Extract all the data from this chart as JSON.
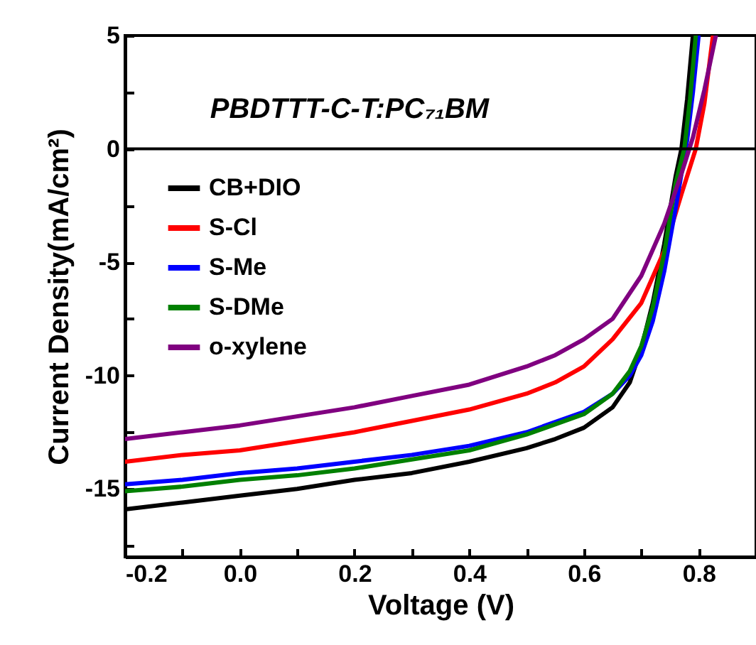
{
  "chart_data": {
    "type": "line",
    "title": "PBDTTT-C-T:PC₇₁BM",
    "xlabel": "Voltage (V)",
    "ylabel": "Current Density(mA/cm²)",
    "xlim": [
      -0.2,
      0.9
    ],
    "ylim": [
      -18,
      5
    ],
    "xticks": [
      -0.2,
      {
        "value": -0.1,
        "label": null
      },
      {
        "value": 0,
        "label": "0.0"
      },
      {
        "value": 0.1,
        "label": null
      },
      0.2,
      {
        "value": 0.3,
        "label": null
      },
      0.4,
      {
        "value": 0.5,
        "label": null
      },
      0.6,
      {
        "value": 0.7,
        "label": null
      },
      0.8
    ],
    "yticks": [
      {
        "value": -17.5,
        "label": null
      },
      -15,
      {
        "value": -12.5,
        "label": null
      },
      -10,
      {
        "value": -7.5,
        "label": null
      },
      -5,
      {
        "value": -2.5,
        "label": null
      },
      0,
      {
        "value": 2.5,
        "label": null
      },
      5
    ],
    "legend": "top left",
    "grid": false,
    "marker": "none",
    "line_style": "solid",
    "ref_lines": [
      {
        "axis": "y",
        "value": 0
      }
    ],
    "series": [
      {
        "name": "CB+DIO",
        "color": "#000000",
        "x": [
          -0.2,
          -0.1,
          0,
          0.1,
          0.2,
          0.3,
          0.4,
          0.5,
          0.55,
          0.6,
          0.65,
          0.68,
          0.7,
          0.72,
          0.74,
          0.76,
          0.77,
          0.78,
          0.79
        ],
        "values": [
          -15.9,
          -15.6,
          -15.3,
          -15.0,
          -14.6,
          -14.3,
          -13.8,
          -13.2,
          -12.8,
          -12.3,
          -11.4,
          -10.3,
          -8.8,
          -6.8,
          -4.2,
          -1.2,
          0,
          2.2,
          5
        ]
      },
      {
        "name": "S-Cl",
        "color": "#ff0000",
        "x": [
          -0.2,
          -0.1,
          0,
          0.1,
          0.2,
          0.3,
          0.4,
          0.5,
          0.55,
          0.6,
          0.65,
          0.7,
          0.74,
          0.77,
          0.795,
          0.81,
          0.825
        ],
        "values": [
          -13.8,
          -13.5,
          -13.3,
          -12.9,
          -12.5,
          -12.0,
          -11.5,
          -10.8,
          -10.3,
          -9.6,
          -8.4,
          -6.8,
          -4.5,
          -2.0,
          0,
          2.0,
          5
        ]
      },
      {
        "name": "S-Me",
        "color": "#0000ff",
        "x": [
          -0.2,
          -0.1,
          0,
          0.1,
          0.2,
          0.3,
          0.4,
          0.5,
          0.6,
          0.65,
          0.68,
          0.7,
          0.72,
          0.74,
          0.76,
          0.78,
          0.79,
          0.8
        ],
        "values": [
          -14.8,
          -14.6,
          -14.3,
          -14.1,
          -13.8,
          -13.5,
          -13.1,
          -12.5,
          -11.6,
          -10.8,
          -10.0,
          -9.1,
          -7.6,
          -5.4,
          -2.6,
          0.4,
          2.5,
          5
        ]
      },
      {
        "name": "S-DMe",
        "color": "#008000",
        "x": [
          -0.2,
          -0.1,
          0,
          0.1,
          0.2,
          0.3,
          0.4,
          0.5,
          0.6,
          0.65,
          0.68,
          0.7,
          0.72,
          0.74,
          0.76,
          0.775,
          0.785,
          0.795
        ],
        "values": [
          -15.1,
          -14.9,
          -14.6,
          -14.4,
          -14.1,
          -13.7,
          -13.3,
          -12.6,
          -11.7,
          -10.8,
          -9.8,
          -8.7,
          -7.0,
          -4.6,
          -1.5,
          0,
          2.2,
          5
        ]
      },
      {
        "name": "o-xylene",
        "color": "#800080",
        "x": [
          -0.2,
          -0.1,
          0,
          0.1,
          0.2,
          0.3,
          0.4,
          0.5,
          0.55,
          0.6,
          0.65,
          0.7,
          0.74,
          0.77,
          0.79,
          0.81,
          0.83
        ],
        "values": [
          -12.8,
          -12.5,
          -12.2,
          -11.8,
          -11.4,
          -10.9,
          -10.4,
          -9.6,
          -9.1,
          -8.4,
          -7.5,
          -5.6,
          -3.3,
          -1.1,
          0.5,
          2.6,
          5
        ]
      }
    ]
  }
}
